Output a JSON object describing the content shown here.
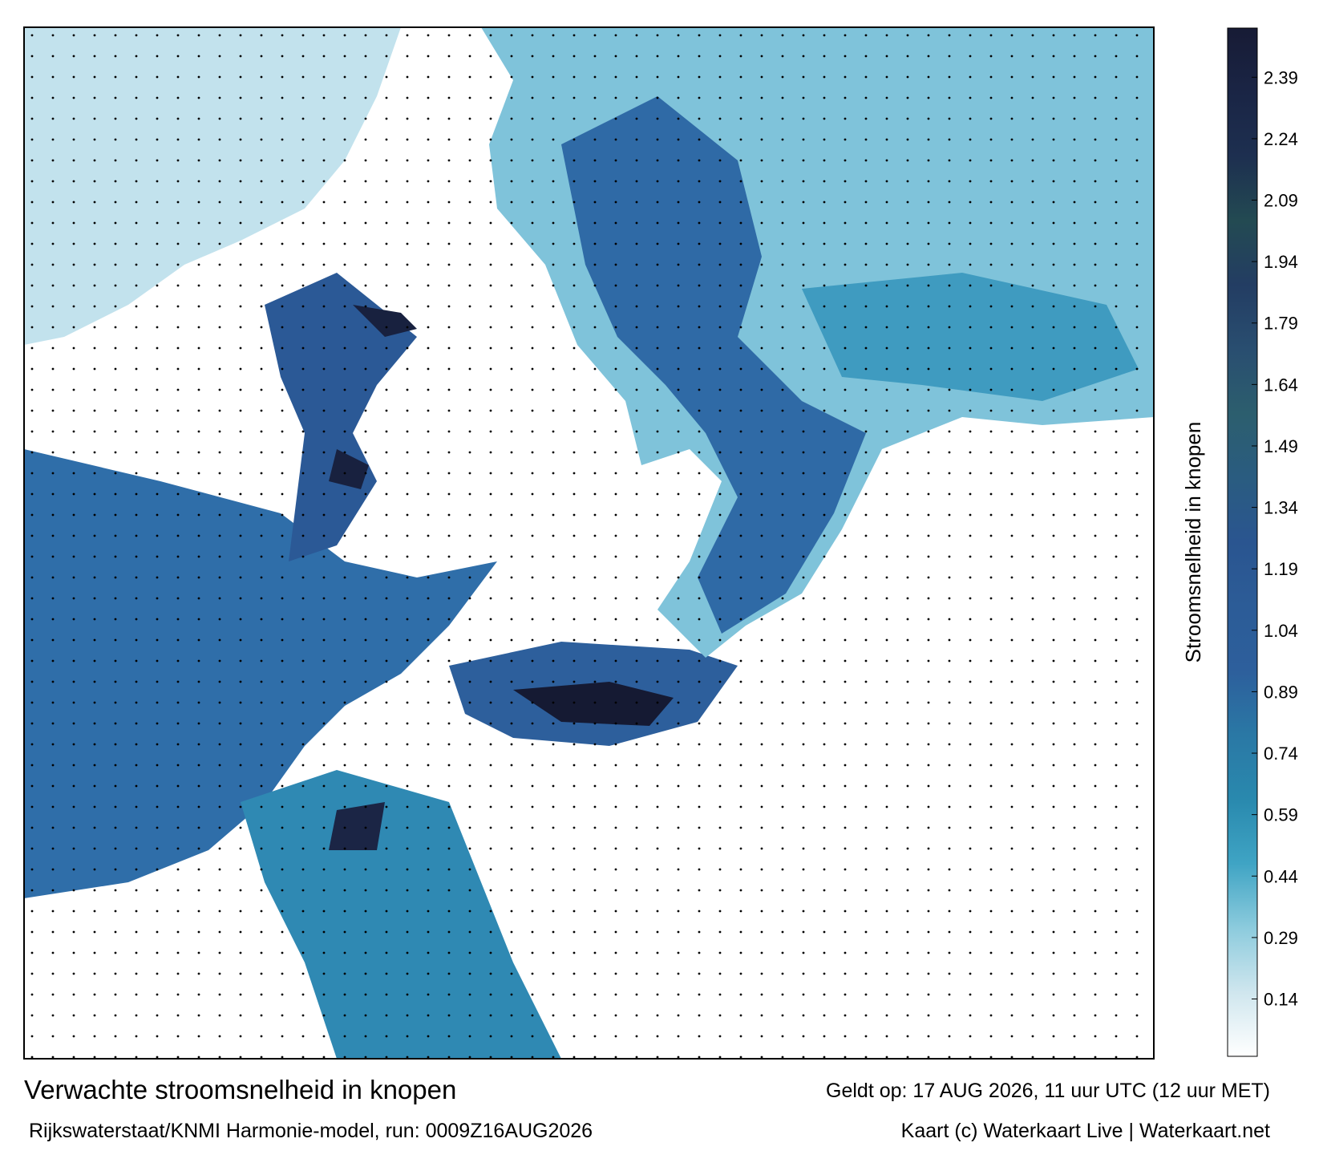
{
  "title": "Verwachte stroomsnelheid in knopen",
  "subtitle": "Rijkswaterstaat/KNMI Harmonie-model, run: 0009Z16AUG2026",
  "valid_time": "Geldt op: 17 AUG 2026, 11 uur UTC (12 uur MET)",
  "credit": "Kaart (c) Waterkaart Live | Waterkaart.net",
  "colorbar": {
    "label": "Stroomsnelheid in knopen",
    "vlim": [
      0,
      2.51
    ],
    "ticks": [
      0.14,
      0.29,
      0.44,
      0.59,
      0.74,
      0.89,
      1.04,
      1.19,
      1.34,
      1.49,
      1.64,
      1.79,
      1.94,
      2.09,
      2.24,
      2.39
    ],
    "colors": [
      "#ffffff",
      "#cfe6ee",
      "#8ccbdd",
      "#3fa4c4",
      "#2989ae",
      "#2a78a5",
      "#2d5f9c",
      "#2c5c97",
      "#2a5590",
      "#2a5c80",
      "#2c5e6e",
      "#294e70",
      "#233d63",
      "#234a52",
      "#1d2f50",
      "#1a2545",
      "#171b35"
    ]
  }
}
